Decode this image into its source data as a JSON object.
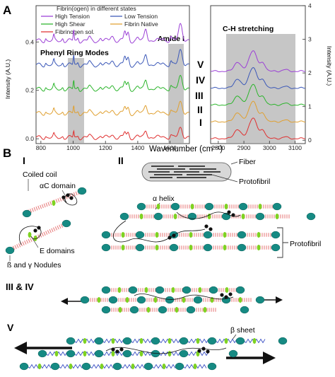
{
  "panel_a": {
    "letter": "A",
    "legend": {
      "title": "Fibrin(ogen) in different states",
      "entries": [
        {
          "label": "High Tension",
          "color": "#9b3fd6"
        },
        {
          "label": "Low Tension",
          "color": "#3b58b8"
        },
        {
          "label": "High Shear",
          "color": "#2bb52b"
        },
        {
          "label": "Fibrin Native",
          "color": "#e0a030"
        },
        {
          "label": "Fibrinogen sol.",
          "color": "#e03030"
        }
      ]
    },
    "bands": {
      "phenyl": "Phenyl Ring Modes",
      "amide": "Amide I",
      "ch": "C-H stretching"
    },
    "roman": [
      "V",
      "IV",
      "III",
      "II",
      "I"
    ],
    "ylabel_left": "Intensity (A.U.)",
    "ylabel_right": "Intensity (A.U.)",
    "xlabel": "Wavenumber (cm⁻¹)"
  },
  "chart_data": {
    "type": "line",
    "title": "",
    "xlabel": "Wavenumber (cm⁻¹)",
    "ylabel": "Intensity (A.U.)",
    "x_ticks_left": [
      800,
      1000,
      1200,
      1400,
      1600
    ],
    "x_ticks_right": [
      2800,
      2900,
      3000,
      3100
    ],
    "xlim_left": [
      770,
      1720
    ],
    "xlim_right": [
      2770,
      3140
    ],
    "ylim_left": [
      -0.02,
      0.55
    ],
    "y_ticks_left": [
      "0.0",
      "0.2",
      "0.4"
    ],
    "y_ticks_left_values": [
      0,
      0.2,
      0.4
    ],
    "ylim_right": [
      -0.1,
      4
    ],
    "y_ticks_right": [
      "0",
      "1",
      "2",
      "3",
      "4"
    ],
    "y_ticks_right_values": [
      0,
      1,
      2,
      3,
      4
    ],
    "shaded_regions": [
      [
        960,
        1060
      ],
      [
        1600,
        1700
      ],
      [
        2830,
        3020
      ]
    ],
    "series": [
      {
        "name": "High Tension",
        "color": "#9b3fd6",
        "offset": 0.4,
        "right_offset": 2.0
      },
      {
        "name": "Low Tension",
        "color": "#3b58b8",
        "offset": 0.3,
        "right_offset": 1.5
      },
      {
        "name": "High Shear",
        "color": "#2bb52b",
        "offset": 0.2,
        "right_offset": 1.0
      },
      {
        "name": "Fibrin Native",
        "color": "#e0a030",
        "offset": 0.1,
        "right_offset": 0.5
      },
      {
        "name": "Fibrinogen sol.",
        "color": "#e03030",
        "offset": 0.0,
        "right_offset": 0.0
      }
    ]
  },
  "panel_b": {
    "letter": "B",
    "sub_i": {
      "roman": "I",
      "coiled_coil": "Coiled coil",
      "alpha_c": "αC domain",
      "e_domains": "E domains",
      "nodules": "ß and γ Nodules"
    },
    "sub_ii": {
      "roman": "II",
      "fiber": "Fiber",
      "protofibril_top": "Protofibril",
      "alpha_helix": "α helix",
      "protofibril_side": "Protofibril"
    },
    "sub_iii_iv": {
      "label": "III & IV"
    },
    "sub_v": {
      "label": "V",
      "beta_sheet": "β sheet"
    }
  }
}
